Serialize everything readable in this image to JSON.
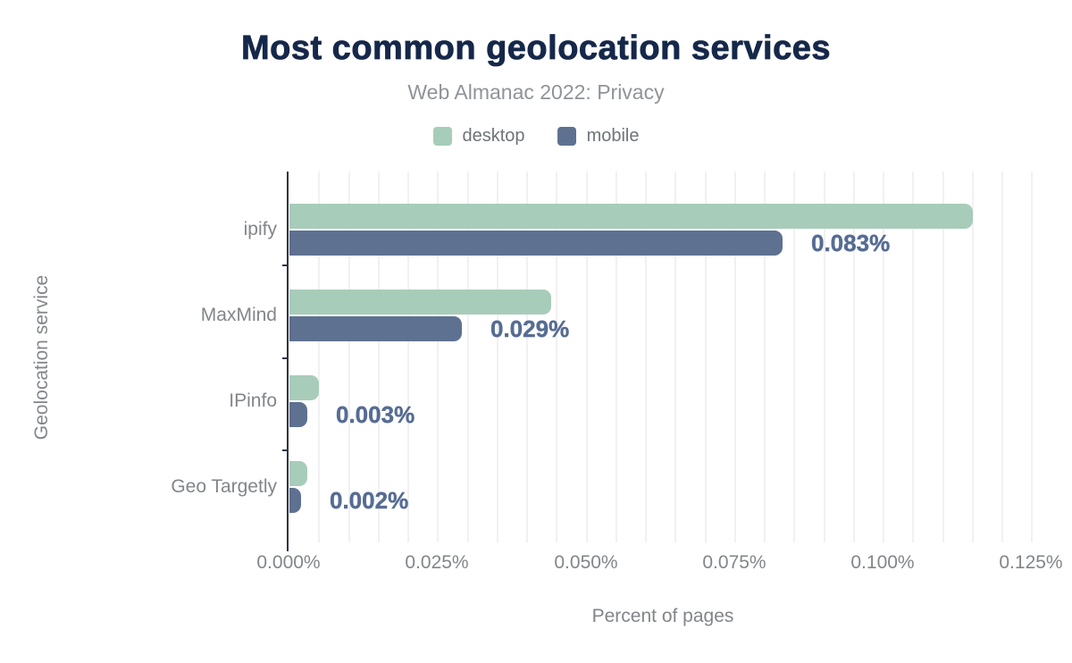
{
  "title": "Most common geolocation services",
  "subtitle": "Web Almanac 2022: Privacy",
  "colors": {
    "title": "#16284a",
    "desktop": "#a8ccba",
    "mobile": "#5f7191",
    "value_label": "#566c93",
    "axis_line": "#2f3542",
    "gridline": "#f1f1f2",
    "axis_text": "#82868a"
  },
  "chart_data": {
    "type": "bar",
    "orientation": "horizontal",
    "title": "Most common geolocation services",
    "subtitle": "Web Almanac 2022: Privacy",
    "categories": [
      "ipify",
      "MaxMind",
      "IPinfo",
      "Geo Targetly"
    ],
    "series": [
      {
        "name": "desktop",
        "color": "#a8ccba",
        "values": [
          0.115,
          0.044,
          0.005,
          0.003
        ]
      },
      {
        "name": "mobile",
        "color": "#5f7191",
        "values": [
          0.083,
          0.029,
          0.003,
          0.002
        ]
      }
    ],
    "value_labels": [
      "0.083%",
      "0.029%",
      "0.003%",
      "0.002%"
    ],
    "value_labels_series": "mobile",
    "xlabel": "Percent of pages",
    "ylabel": "Geolocation service",
    "x_ticks": [
      "0.000%",
      "0.025%",
      "0.050%",
      "0.075%",
      "0.100%",
      "0.125%"
    ],
    "x_tick_values": [
      0,
      0.025,
      0.05,
      0.075,
      0.1,
      0.125
    ],
    "xlim": [
      0,
      0.126
    ],
    "minor_grid_step": 0.005,
    "grid": true,
    "legend_position": "top"
  }
}
